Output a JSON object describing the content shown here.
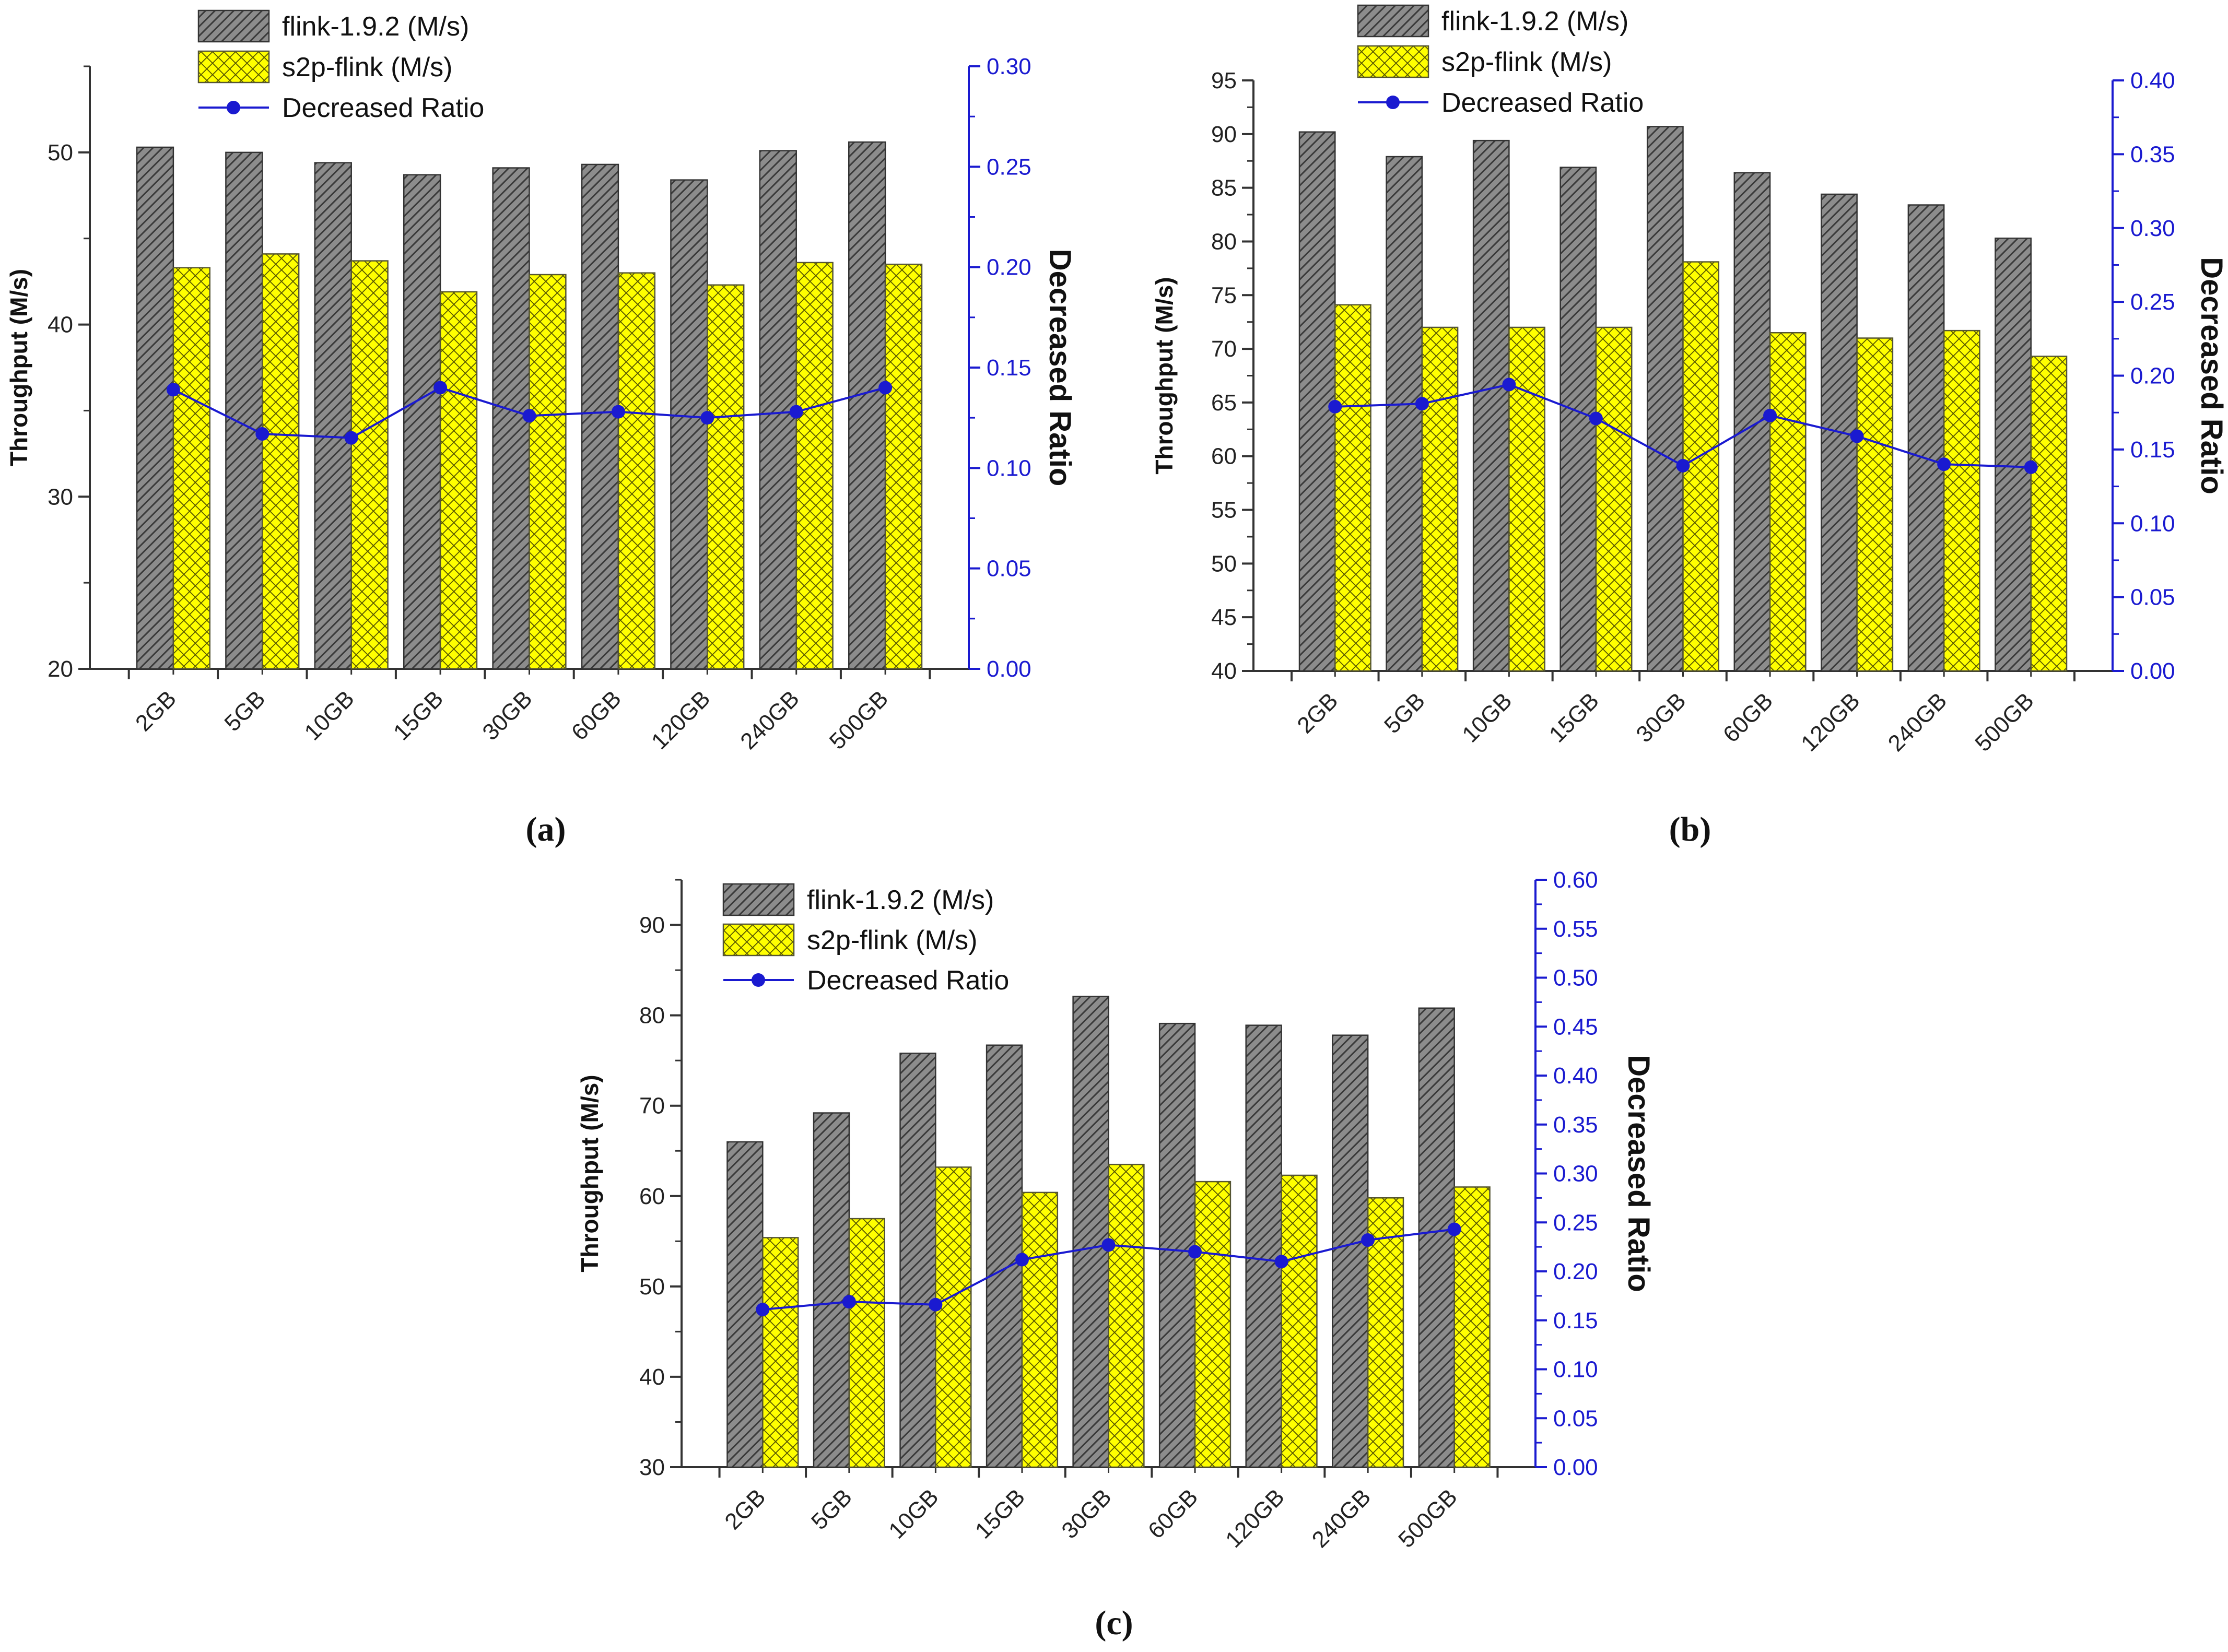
{
  "colors": {
    "flink_fill": "#8c8c8c",
    "s2p_fill": "#ffff00",
    "ratio_line": "#1a1ad0",
    "axis": "#333333",
    "right_axis": "#1a1ad0"
  },
  "chart_data": [
    {
      "type": "bar",
      "caption": "(a)",
      "categories": [
        "2GB",
        "5GB",
        "10GB",
        "15GB",
        "30GB",
        "60GB",
        "120GB",
        "240GB",
        "500GB"
      ],
      "series": [
        {
          "name": "flink-1.9.2 (M/s)",
          "axis": "left",
          "values": [
            50.3,
            50.0,
            49.4,
            48.7,
            49.1,
            49.3,
            48.4,
            50.1,
            50.6
          ]
        },
        {
          "name": "s2p-flink (M/s)",
          "axis": "left",
          "values": [
            43.3,
            44.1,
            43.7,
            41.9,
            42.9,
            43.0,
            42.3,
            43.6,
            43.5
          ]
        },
        {
          "name": "Decreased Ratio",
          "axis": "right",
          "kind": "line",
          "values": [
            0.139,
            0.117,
            0.115,
            0.14,
            0.126,
            0.128,
            0.125,
            0.128,
            0.14
          ]
        }
      ],
      "ylabel": "Throughput (M/s)",
      "y2label": "Decreased Ratio",
      "ylim": [
        20,
        55
      ],
      "yticks": [
        "20",
        "30",
        "40",
        "50"
      ],
      "y2lim": [
        0,
        0.3
      ],
      "y2ticks": [
        "0.00",
        "0.05",
        "0.10",
        "0.15",
        "0.20",
        "0.25",
        "0.30"
      ],
      "legend": "top-left"
    },
    {
      "type": "bar",
      "caption": "(b)",
      "categories": [
        "2GB",
        "5GB",
        "10GB",
        "15GB",
        "30GB",
        "60GB",
        "120GB",
        "240GB",
        "500GB"
      ],
      "series": [
        {
          "name": "flink-1.9.2 (M/s)",
          "axis": "left",
          "values": [
            90.2,
            87.9,
            89.4,
            86.9,
            90.7,
            86.4,
            84.4,
            83.4,
            80.3
          ]
        },
        {
          "name": "s2p-flink (M/s)",
          "axis": "left",
          "values": [
            74.1,
            72.0,
            72.0,
            72.0,
            78.1,
            71.5,
            71.0,
            71.7,
            69.3
          ]
        },
        {
          "name": "Decreased Ratio",
          "axis": "right",
          "kind": "line",
          "values": [
            0.179,
            0.181,
            0.194,
            0.171,
            0.139,
            0.173,
            0.159,
            0.14,
            0.138
          ]
        }
      ],
      "ylabel": "Throughput (M/s)",
      "y2label": "Decreased Ratio",
      "ylim": [
        40,
        95
      ],
      "yticks": [
        "40",
        "45",
        "50",
        "55",
        "60",
        "65",
        "70",
        "75",
        "80",
        "85",
        "90",
        "95"
      ],
      "y2lim": [
        0,
        0.4
      ],
      "y2ticks": [
        "0.00",
        "0.05",
        "0.10",
        "0.15",
        "0.20",
        "0.25",
        "0.30",
        "0.35",
        "0.40"
      ],
      "legend": "top-left"
    },
    {
      "type": "bar",
      "caption": "(c)",
      "categories": [
        "2GB",
        "5GB",
        "10GB",
        "15GB",
        "30GB",
        "60GB",
        "120GB",
        "240GB",
        "500GB"
      ],
      "series": [
        {
          "name": "flink-1.9.2 (M/s)",
          "axis": "left",
          "values": [
            66.0,
            69.2,
            75.8,
            76.7,
            82.1,
            79.1,
            78.9,
            77.8,
            80.8
          ]
        },
        {
          "name": "s2p-flink (M/s)",
          "axis": "left",
          "values": [
            55.4,
            57.5,
            63.2,
            60.4,
            63.5,
            61.6,
            62.3,
            59.8,
            61.0
          ]
        },
        {
          "name": "Decreased Ratio",
          "axis": "right",
          "kind": "line",
          "values": [
            0.161,
            0.169,
            0.166,
            0.212,
            0.227,
            0.22,
            0.21,
            0.232,
            0.243
          ]
        }
      ],
      "ylabel": "Throughput (M/s)",
      "y2label": "Decreased Ratio",
      "ylim": [
        30,
        95
      ],
      "yticks": [
        "30",
        "40",
        "50",
        "60",
        "70",
        "80",
        "90"
      ],
      "y2lim": [
        0,
        0.6
      ],
      "y2ticks": [
        "0.00",
        "0.05",
        "0.10",
        "0.15",
        "0.20",
        "0.25",
        "0.30",
        "0.35",
        "0.40",
        "0.45",
        "0.50",
        "0.55",
        "0.60"
      ],
      "legend": "top-left"
    }
  ]
}
